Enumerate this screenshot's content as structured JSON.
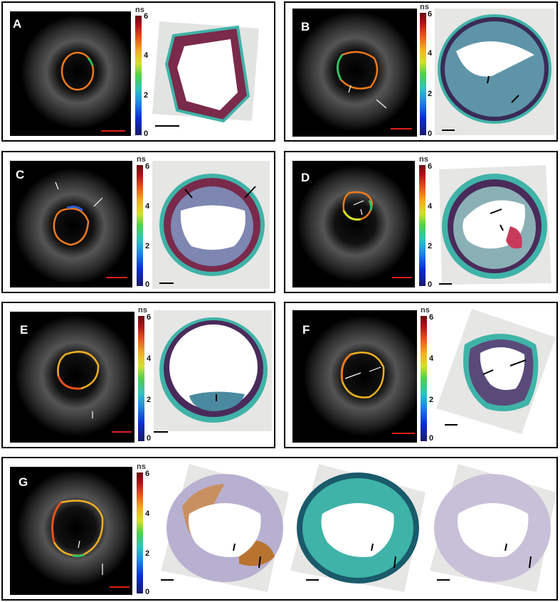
{
  "panels": [
    {
      "id": "A",
      "label": "A"
    },
    {
      "id": "B",
      "label": "B"
    },
    {
      "id": "C",
      "label": "C"
    },
    {
      "id": "D",
      "label": "D"
    },
    {
      "id": "E",
      "label": "E"
    },
    {
      "id": "F",
      "label": "F"
    },
    {
      "id": "G",
      "label": "G"
    }
  ],
  "colorbar": {
    "unit": "ns",
    "ticks": [
      "6",
      "4",
      "2",
      "0"
    ]
  },
  "colors": {
    "scalebar_ivus": "#e0201c",
    "scalebar_histo": "#000000",
    "trichrome_collagen": "#3fb3a8",
    "trichrome_muscle": "#7a2a4a",
    "ihc_brown": "#b8742e",
    "ihc_background": "#b8b0d0"
  }
}
